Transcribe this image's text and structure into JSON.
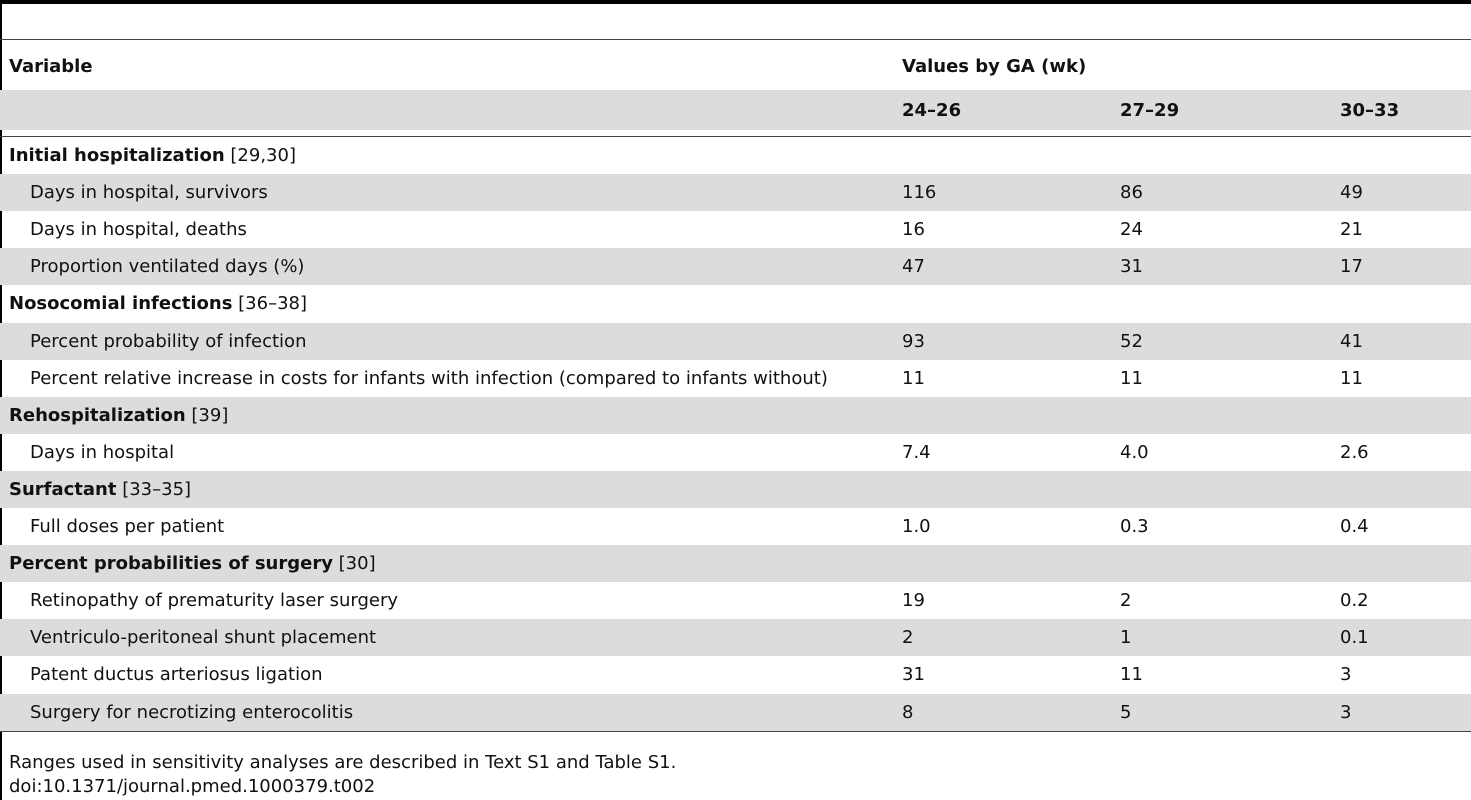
{
  "header": {
    "variable": "Variable",
    "group": "Values by GA (wk)",
    "columns": [
      "24–26",
      "27–29",
      "30–33"
    ]
  },
  "rows": [
    {
      "type": "section",
      "label": "Initial hospitalization",
      "ref": " [29,30]"
    },
    {
      "type": "item",
      "label": "Days in hospital, survivors",
      "values": [
        "116",
        "86",
        "49"
      ]
    },
    {
      "type": "item",
      "label": "Days in hospital, deaths",
      "values": [
        "16",
        "24",
        "21"
      ]
    },
    {
      "type": "item",
      "label": "Proportion ventilated days (%)",
      "values": [
        "47",
        "31",
        "17"
      ]
    },
    {
      "type": "section",
      "label": "Nosocomial infections",
      "ref": " [36–38]"
    },
    {
      "type": "item",
      "label": "Percent probability of infection",
      "values": [
        "93",
        "52",
        "41"
      ]
    },
    {
      "type": "item",
      "label": "Percent relative increase in costs for infants with infection (compared to infants without)",
      "values": [
        "11",
        "11",
        "11"
      ]
    },
    {
      "type": "section",
      "label": "Rehospitalization",
      "ref": " [39]"
    },
    {
      "type": "item",
      "label": "Days in hospital",
      "values": [
        "7.4",
        "4.0",
        "2.6"
      ]
    },
    {
      "type": "section",
      "label": "Surfactant",
      "ref": " [33–35]"
    },
    {
      "type": "item",
      "label": "Full doses per patient",
      "values": [
        "1.0",
        "0.3",
        "0.4"
      ]
    },
    {
      "type": "section",
      "label": "Percent probabilities of surgery",
      "ref": " [30]"
    },
    {
      "type": "item",
      "label": "Retinopathy of prematurity laser surgery",
      "values": [
        "19",
        "2",
        "0.2"
      ]
    },
    {
      "type": "item",
      "label": "Ventriculo-peritoneal shunt placement",
      "values": [
        "2",
        "1",
        "0.1"
      ]
    },
    {
      "type": "item",
      "label": "Patent ductus arteriosus ligation",
      "values": [
        "31",
        "11",
        "3"
      ]
    },
    {
      "type": "item",
      "label": "Surgery for necrotizing enterocolitis",
      "values": [
        "8",
        "5",
        "3"
      ]
    }
  ],
  "footnote": "Ranges used in sensitivity analyses are described in Text S1 and Table S1.",
  "doi": "doi:10.1371/journal.pmed.1000379.t002"
}
